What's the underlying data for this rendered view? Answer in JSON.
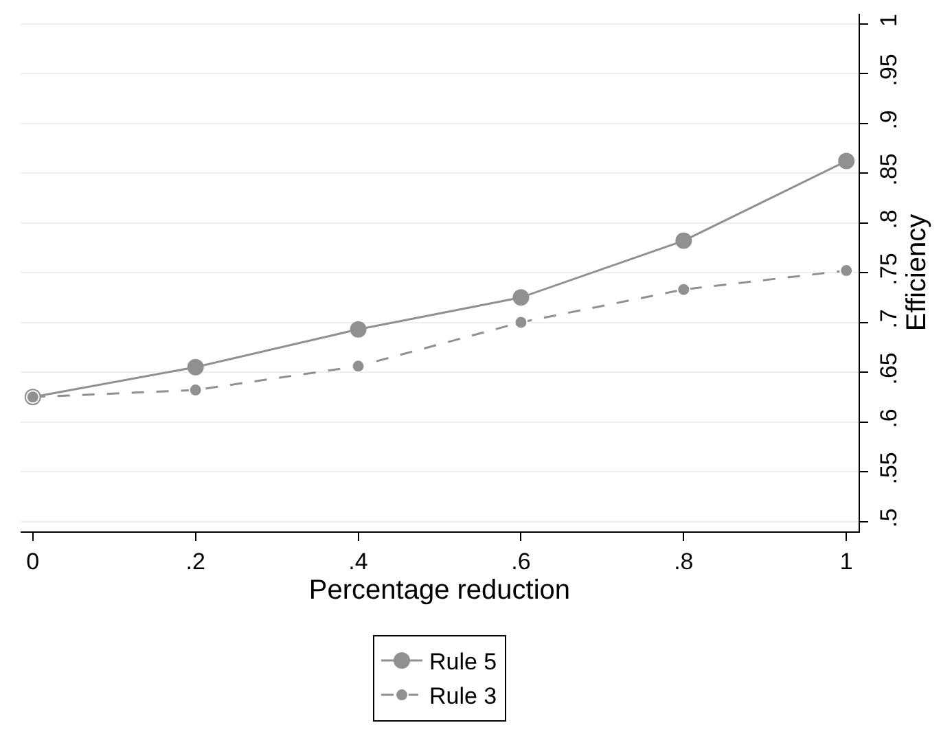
{
  "chart_data": {
    "type": "line",
    "xlabel": "Percentage reduction",
    "ylabel": "Efficiency",
    "x": [
      0,
      0.2,
      0.4,
      0.6,
      0.8,
      1
    ],
    "series": [
      {
        "name": "Rule 5",
        "color": "#909090",
        "line_style": "solid",
        "values": [
          0.625,
          0.655,
          0.693,
          0.725,
          0.782,
          0.862
        ]
      },
      {
        "name": "Rule 3",
        "color": "#909090",
        "line_style": "dashed",
        "values": [
          0.625,
          0.632,
          0.656,
          0.7,
          0.733,
          0.752
        ]
      }
    ],
    "xlim": [
      -0.015,
      1.015
    ],
    "ylim": [
      0.49,
      1.01
    ],
    "xticks": [
      {
        "value": 0,
        "label": "0"
      },
      {
        "value": 0.2,
        "label": ".2"
      },
      {
        "value": 0.4,
        "label": ".4"
      },
      {
        "value": 0.6,
        "label": ".6"
      },
      {
        "value": 0.8,
        "label": ".8"
      },
      {
        "value": 1,
        "label": "1"
      }
    ],
    "yticks": [
      {
        "value": 0.5,
        "label": ".5"
      },
      {
        "value": 0.55,
        "label": ".55"
      },
      {
        "value": 0.6,
        "label": ".6"
      },
      {
        "value": 0.65,
        "label": ".65"
      },
      {
        "value": 0.7,
        "label": ".7"
      },
      {
        "value": 0.75,
        "label": ".75"
      },
      {
        "value": 0.8,
        "label": ".8"
      },
      {
        "value": 0.85,
        "label": ".85"
      },
      {
        "value": 0.9,
        "label": ".9"
      },
      {
        "value": 0.95,
        "label": ".95"
      },
      {
        "value": 1,
        "label": "1"
      }
    ],
    "grid": "y",
    "legend": "bottom",
    "marker": "circle"
  }
}
